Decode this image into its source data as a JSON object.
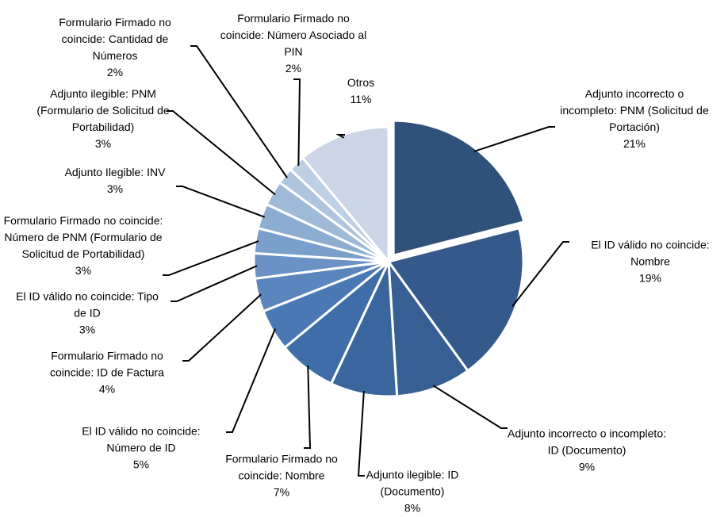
{
  "chart_data": {
    "type": "pie",
    "categories": [
      "Adjunto incorrecto o incompleto: PNM (Solicitud de Portación)",
      "El ID válido no coincide: Nombre",
      "Adjunto incorrecto o incompleto: ID (Documento)",
      "Adjunto ilegible: ID (Documento)",
      "Formulario Firmado no coincide:  Nombre",
      "El ID válido no coincide: Número de ID",
      "Formulario Firmado no coincide:  ID de Factura",
      "El ID válido no coincide: Tipo de ID",
      "Formulario Firmado no coincide:  Número de PNM (Formulario de Solicitud de Portabilidad)",
      "Adjunto Ilegible: INV",
      "Adjunto ilegible: PNM (Formulario de Solicitud de Portabilidad)",
      "Formulario Firmado no coincide:  Cantidad de Números",
      "Formulario Firmado no coincide:  Número Asociado al PIN",
      "Otros"
    ],
    "values": [
      21,
      19,
      9,
      8,
      7,
      5,
      4,
      3,
      3,
      3,
      3,
      2,
      2,
      11
    ],
    "value_labels": [
      "21%",
      "19%",
      "9%",
      "8%",
      "7%",
      "5%",
      "4%",
      "3%",
      "3%",
      "3%",
      "3%",
      "2%",
      "2%",
      "11%"
    ],
    "colors": [
      "#30527a",
      "#34598a",
      "#385f93",
      "#3b669d",
      "#3f6da8",
      "#4a78b4",
      "#5a85bd",
      "#6a92c4",
      "#7b9fcb",
      "#8dacd2",
      "#9fbad9",
      "#afc5df",
      "#bdcfe5",
      "#ccd4e8"
    ]
  }
}
